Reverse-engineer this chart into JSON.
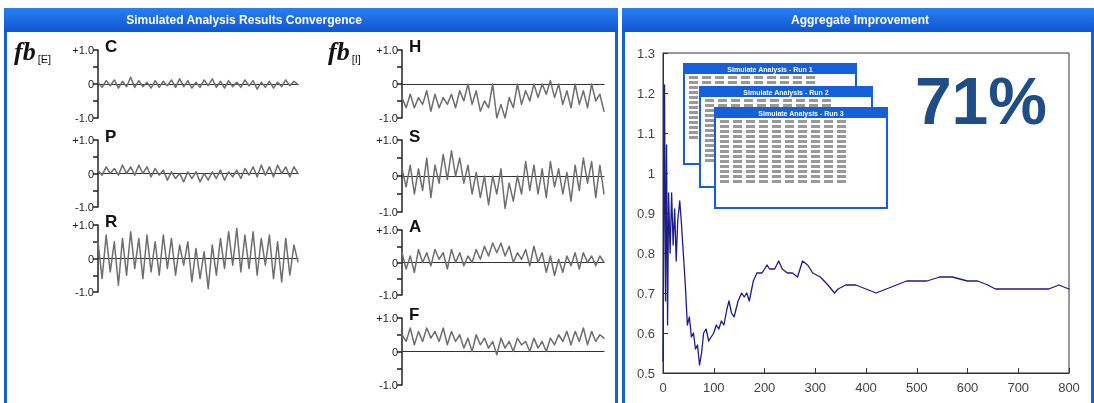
{
  "chart_data": [
    {
      "type": "line",
      "ylabel": "fb$_{[E]}$",
      "title": "C",
      "annotations": [
        "Simulated Analysis Results Convergence"
      ],
      "color": "#6e6e6e",
      "marker": "none",
      "tick_labels": "y",
      "ylim": [
        -1,
        1
      ],
      "yticks": [
        {
          "value": 1,
          "label": "+1.0"
        },
        {
          "value": 0.5,
          "label": null
        },
        0,
        {
          "value": -0.5,
          "label": null
        },
        {
          "value": -1,
          "label": "-1.0"
        }
      ],
      "categories": [
        null,
        null,
        null,
        null,
        null,
        null,
        null,
        null,
        null,
        null,
        null,
        null,
        null,
        null,
        null,
        null,
        null,
        null,
        null,
        null,
        null,
        null,
        null,
        null,
        null,
        null,
        null,
        null,
        null,
        null,
        null,
        null,
        null,
        null,
        null,
        null,
        null,
        null,
        null,
        null,
        null,
        null,
        null,
        null,
        null,
        null,
        null,
        null,
        null,
        null
      ],
      "values": [
        0.05,
        -0.1,
        0.1,
        -0.05,
        0.12,
        -0.12,
        0.08,
        -0.08,
        0.2,
        -0.1,
        0.1,
        -0.08,
        0.05,
        -0.12,
        0.1,
        -0.1,
        0.08,
        -0.05,
        0.12,
        -0.1,
        0.15,
        -0.08,
        0.1,
        -0.12,
        0.05,
        -0.1,
        0.12,
        -0.05,
        0.15,
        -0.1,
        0.08,
        -0.12,
        0.1,
        -0.08,
        0.05,
        -0.1,
        0.12,
        -0.05,
        0.1,
        -0.15,
        0.05,
        -0.1,
        0.08,
        -0.12,
        0.05,
        -0.08,
        0.12,
        -0.05,
        0.08,
        -0.02
      ]
    },
    {
      "type": "line",
      "title": "P",
      "color": "#6e6e6e",
      "marker": "none",
      "tick_labels": "y",
      "ylim": [
        -1,
        1
      ],
      "yticks": [
        {
          "value": 1,
          "label": "+1.0"
        },
        {
          "value": 0.5,
          "label": null
        },
        0,
        {
          "value": -0.5,
          "label": null
        },
        {
          "value": -1,
          "label": "-1.0"
        }
      ],
      "categories": [
        null,
        null,
        null,
        null,
        null,
        null,
        null,
        null,
        null,
        null,
        null,
        null,
        null,
        null,
        null,
        null,
        null,
        null,
        null,
        null,
        null,
        null,
        null,
        null,
        null,
        null,
        null,
        null,
        null,
        null,
        null,
        null,
        null,
        null,
        null,
        null,
        null,
        null,
        null,
        null,
        null,
        null,
        null,
        null,
        null,
        null,
        null,
        null,
        null,
        null
      ],
      "values": [
        0.1,
        -0.05,
        0.2,
        0,
        0.15,
        -0.05,
        0.25,
        0,
        0.2,
        -0.05,
        0.25,
        0,
        0.2,
        -0.1,
        0.15,
        -0.05,
        0.1,
        -0.2,
        0.05,
        -0.15,
        0,
        -0.25,
        0.05,
        -0.15,
        0.05,
        -0.25,
        0,
        -0.2,
        0.05,
        -0.15,
        0.1,
        -0.2,
        0.05,
        -0.1,
        0.1,
        -0.15,
        0.15,
        -0.05,
        0.2,
        -0.1,
        0.25,
        -0.05,
        0.2,
        -0.1,
        0.25,
        0,
        0.2,
        -0.1,
        0.2,
        0
      ]
    },
    {
      "type": "line",
      "title": "R",
      "color": "#6e6e6e",
      "marker": "none",
      "tick_labels": "y",
      "ylim": [
        -1,
        1
      ],
      "yticks": [
        {
          "value": 1,
          "label": "+1.0"
        },
        {
          "value": 0.5,
          "label": null
        },
        0,
        {
          "value": -0.5,
          "label": null
        },
        {
          "value": -1,
          "label": "-1.0"
        }
      ],
      "categories": [
        null,
        null,
        null,
        null,
        null,
        null,
        null,
        null,
        null,
        null,
        null,
        null,
        null,
        null,
        null,
        null,
        null,
        null,
        null,
        null,
        null,
        null,
        null,
        null,
        null,
        null,
        null,
        null,
        null,
        null,
        null,
        null,
        null,
        null,
        null,
        null,
        null,
        null,
        null,
        null,
        null,
        null,
        null,
        null,
        null,
        null,
        null,
        null,
        null,
        null
      ],
      "values": [
        0.5,
        -0.6,
        0.7,
        -0.4,
        0.5,
        -0.8,
        0.6,
        -0.5,
        0.8,
        -0.3,
        0.6,
        -0.6,
        0.7,
        -0.4,
        0.5,
        -0.5,
        0.7,
        -0.3,
        0.6,
        -0.5,
        0.4,
        -0.2,
        0.5,
        -0.7,
        0.3,
        -0.6,
        0.2,
        -0.9,
        0.4,
        -0.5,
        0.6,
        -0.3,
        0.8,
        -0.2,
        0.9,
        -0.4,
        0.7,
        -0.3,
        0.8,
        -0.5,
        0.6,
        -0.2,
        0.7,
        -0.6,
        0.5,
        -0.7,
        0.6,
        -0.5,
        0.4,
        -0.1
      ]
    },
    {
      "type": "line",
      "ylabel": "fb$_{[I]}$",
      "title": "H",
      "color": "#6e6e6e",
      "marker": "none",
      "tick_labels": "y",
      "ylim": [
        -1,
        1
      ],
      "yticks": [
        {
          "value": 1,
          "label": "+1.0"
        },
        {
          "value": 0.5,
          "label": null
        },
        0,
        {
          "value": -0.5,
          "label": null
        },
        {
          "value": -1,
          "label": "-1.0"
        }
      ],
      "categories": [
        null,
        null,
        null,
        null,
        null,
        null,
        null,
        null,
        null,
        null,
        null,
        null,
        null,
        null,
        null,
        null,
        null,
        null,
        null,
        null,
        null,
        null,
        null,
        null,
        null,
        null,
        null,
        null,
        null,
        null,
        null,
        null,
        null,
        null,
        null,
        null,
        null,
        null,
        null,
        null,
        null,
        null,
        null,
        null,
        null,
        null,
        null,
        null,
        null,
        null
      ],
      "values": [
        -0.4,
        -0.7,
        -0.3,
        -0.7,
        -0.4,
        -0.6,
        -0.2,
        -0.8,
        -0.3,
        -0.7,
        -0.4,
        -0.6,
        -0.3,
        -0.7,
        -0.2,
        -0.5,
        0,
        -0.6,
        -0.2,
        -0.8,
        -0.5,
        -0.7,
        0,
        -1.0,
        -0.6,
        -1.0,
        -0.4,
        -0.7,
        0,
        -0.6,
        -0.2,
        -0.5,
        0,
        -0.4,
        0,
        -0.3,
        0.1,
        -0.4,
        0,
        -0.6,
        -0.2,
        -0.7,
        0,
        -0.6,
        -0.2,
        -0.7,
        0,
        -0.5,
        -0.3,
        -0.8
      ]
    },
    {
      "type": "line",
      "title": "S",
      "color": "#6e6e6e",
      "marker": "none",
      "tick_labels": "y",
      "ylim": [
        -1,
        1
      ],
      "yticks": [
        {
          "value": 1,
          "label": "+1.0"
        },
        {
          "value": 0.5,
          "label": null
        },
        0,
        {
          "value": -0.5,
          "label": null
        },
        {
          "value": -1,
          "label": "-1.0"
        }
      ],
      "categories": [
        null,
        null,
        null,
        null,
        null,
        null,
        null,
        null,
        null,
        null,
        null,
        null,
        null,
        null,
        null,
        null,
        null,
        null,
        null,
        null,
        null,
        null,
        null,
        null,
        null,
        null,
        null,
        null,
        null,
        null,
        null,
        null,
        null,
        null,
        null,
        null,
        null,
        null,
        null,
        null,
        null,
        null,
        null,
        null,
        null,
        null,
        null,
        null,
        null,
        null
      ],
      "values": [
        0.2,
        -0.3,
        0.3,
        -0.5,
        0.2,
        -0.4,
        0.5,
        -0.6,
        0.3,
        -0.2,
        0.6,
        -0.1,
        0.7,
        0,
        0.5,
        -0.2,
        0.3,
        -0.5,
        0.1,
        -0.6,
        0,
        -0.8,
        0,
        -0.5,
        0.2,
        -0.9,
        -0.2,
        -0.7,
        0,
        -0.5,
        0.4,
        -0.4,
        0.3,
        -0.5,
        0.2,
        -0.6,
        0.4,
        -0.3,
        0.2,
        -0.5,
        0.1,
        -0.7,
        0.3,
        -0.4,
        0.5,
        -0.2,
        0.4,
        -0.6,
        0.3,
        -0.5
      ]
    },
    {
      "type": "line",
      "title": "A",
      "color": "#6e6e6e",
      "marker": "none",
      "tick_labels": "y",
      "ylim": [
        -1,
        1
      ],
      "yticks": [
        {
          "value": 1,
          "label": "+1.0"
        },
        {
          "value": 0.5,
          "label": null
        },
        0,
        {
          "value": -0.5,
          "label": null
        },
        {
          "value": -1,
          "label": "-1.0"
        }
      ],
      "categories": [
        null,
        null,
        null,
        null,
        null,
        null,
        null,
        null,
        null,
        null,
        null,
        null,
        null,
        null,
        null,
        null,
        null,
        null,
        null,
        null,
        null,
        null,
        null,
        null,
        null,
        null,
        null,
        null,
        null,
        null,
        null,
        null,
        null,
        null,
        null,
        null,
        null,
        null,
        null,
        null,
        null,
        null,
        null,
        null,
        null,
        null,
        null,
        null,
        null,
        null
      ],
      "values": [
        0.3,
        -0.2,
        0.2,
        -0.3,
        0.4,
        0,
        0.3,
        -0.1,
        0.4,
        0.1,
        0.3,
        -0.2,
        0.4,
        0,
        0.3,
        -0.1,
        0.2,
        0,
        0.4,
        0.1,
        0.5,
        0.2,
        0.6,
        0.3,
        0.6,
        0.2,
        0.5,
        0,
        0.3,
        0.1,
        0.4,
        -0.1,
        0.5,
        0,
        0.3,
        -0.3,
        0.2,
        -0.4,
        0.1,
        -0.3,
        0.2,
        -0.1,
        0.3,
        -0.2,
        0.3,
        0,
        0.2,
        -0.1,
        0.2,
        0
      ]
    },
    {
      "type": "line",
      "title": "F",
      "color": "#6e6e6e",
      "marker": "none",
      "tick_labels": "y",
      "ylim": [
        -1,
        1
      ],
      "yticks": [
        {
          "value": 1,
          "label": "+1.0"
        },
        {
          "value": 0.5,
          "label": null
        },
        0,
        {
          "value": -0.5,
          "label": null
        },
        {
          "value": -1,
          "label": "-1.0"
        }
      ],
      "categories": [
        null,
        null,
        null,
        null,
        null,
        null,
        null,
        null,
        null,
        null,
        null,
        null,
        null,
        null,
        null,
        null,
        null,
        null,
        null,
        null,
        null,
        null,
        null,
        null,
        null,
        null,
        null,
        null,
        null,
        null,
        null,
        null,
        null,
        null,
        null,
        null,
        null,
        null,
        null,
        null,
        null,
        null,
        null,
        null,
        null,
        null,
        null,
        null,
        null,
        null
      ],
      "values": [
        0.5,
        0.3,
        0.7,
        0.2,
        0.6,
        0.3,
        0.7,
        0.4,
        0.6,
        0.3,
        0.7,
        0.2,
        0.6,
        0.3,
        0.5,
        0.1,
        0.4,
        0,
        0.5,
        0.2,
        0.4,
        0.1,
        0.3,
        -0.1,
        0.4,
        0.1,
        0.3,
        0,
        0.4,
        0.2,
        0.3,
        0,
        0.4,
        0.1,
        0.3,
        0,
        0.4,
        0.2,
        0.5,
        0.3,
        0.6,
        0.2,
        0.6,
        0.3,
        0.7,
        0.2,
        0.6,
        0.3,
        0.5,
        0.4
      ]
    },
    {
      "type": "line",
      "title": "Aggregate Improvement",
      "annotations": [
        "71%",
        "Simulate Analysis - Run 1",
        "Simulate Analysis - Run 2",
        "Simulate Analysis - Run 3"
      ],
      "color": "#1c1c8a",
      "marker": "none",
      "grid": false,
      "xlim": [
        0,
        800
      ],
      "xticks": [
        0,
        100,
        200,
        300,
        400,
        500,
        600,
        700,
        800
      ],
      "ylim": [
        0.5,
        1.3
      ],
      "yticks": [
        0.5,
        0.6,
        0.7,
        0.8,
        0.9,
        1,
        1.1,
        1.2,
        1.3
      ],
      "x": [
        0,
        3,
        5,
        7,
        9,
        11,
        14,
        17,
        20,
        23,
        26,
        29,
        33,
        36,
        40,
        44,
        48,
        52,
        56,
        60,
        64,
        68,
        72,
        76,
        80,
        85,
        90,
        95,
        100,
        105,
        110,
        115,
        120,
        126,
        130,
        135,
        140,
        148,
        155,
        160,
        165,
        170,
        178,
        185,
        195,
        205,
        210,
        220,
        228,
        235,
        245,
        255,
        265,
        275,
        285,
        295,
        310,
        325,
        338,
        345,
        360,
        380,
        400,
        420,
        440,
        460,
        480,
        500,
        520,
        545,
        570,
        600,
        620,
        640,
        655,
        680,
        700,
        720,
        740,
        760,
        780,
        800
      ],
      "values": [
        0.53,
        1.22,
        0.68,
        1.07,
        0.62,
        0.95,
        0.8,
        0.95,
        0.82,
        0.91,
        0.78,
        0.88,
        0.93,
        0.88,
        0.8,
        0.72,
        0.62,
        0.64,
        0.59,
        0.6,
        0.56,
        0.57,
        0.52,
        0.55,
        0.6,
        0.61,
        0.58,
        0.59,
        0.6,
        0.62,
        0.61,
        0.63,
        0.62,
        0.66,
        0.68,
        0.65,
        0.64,
        0.68,
        0.7,
        0.69,
        0.7,
        0.68,
        0.73,
        0.75,
        0.75,
        0.77,
        0.76,
        0.76,
        0.78,
        0.76,
        0.75,
        0.75,
        0.74,
        0.78,
        0.77,
        0.75,
        0.74,
        0.72,
        0.7,
        0.71,
        0.72,
        0.72,
        0.71,
        0.7,
        0.71,
        0.72,
        0.73,
        0.73,
        0.73,
        0.74,
        0.74,
        0.73,
        0.73,
        0.72,
        0.71,
        0.71,
        0.71,
        0.71,
        0.71,
        0.71,
        0.72,
        0.71
      ]
    }
  ]
}
